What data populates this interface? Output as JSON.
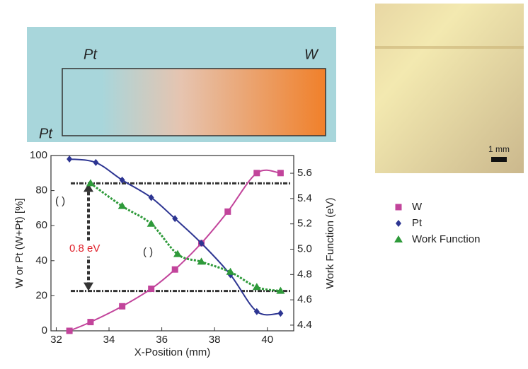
{
  "schematic": {
    "labels": [
      "Pt",
      "W",
      "Pt"
    ]
  },
  "photo": {
    "scale_label": "1 mm"
  },
  "chart_data": {
    "type": "scatter",
    "xlabel": "X-Position (mm)",
    "ylabel": "W or Pt (W+Pt) [%]",
    "y2label": "Work Function (eV)",
    "xlim": [
      31.8,
      41
    ],
    "ylim": [
      0,
      100
    ],
    "y2lim": [
      4.355,
      5.74
    ],
    "xticks": [
      32,
      34,
      36,
      38,
      40
    ],
    "yticks": [
      0,
      20,
      40,
      60,
      80,
      100
    ],
    "y2ticks": [
      4.4,
      4.6,
      4.8,
      {
        "value": 5.0,
        "label": "5.0"
      },
      5.2,
      5.4,
      5.6
    ],
    "series": [
      {
        "name": "W",
        "color": "#c2449b",
        "marker": "square",
        "x": [
          32.5,
          33.3,
          34.5,
          35.6,
          36.5,
          37.5,
          38.5,
          39.6,
          40.5
        ],
        "values": [
          0,
          5,
          14,
          24,
          35,
          50,
          68,
          90,
          90
        ]
      },
      {
        "name": "Pt",
        "color": "#2d3592",
        "marker": "diamond",
        "x": [
          32.5,
          33.5,
          34.5,
          35.6,
          36.5,
          37.5,
          38.6,
          39.6,
          40.5
        ],
        "values": [
          98,
          96,
          86,
          76,
          64,
          50,
          32,
          11,
          10
        ]
      },
      {
        "name": "Work Function",
        "color": "#2e9a3a",
        "marker": "triangle",
        "axis": "y2",
        "x": [
          33.3,
          34.5,
          35.6,
          36.6,
          37.5,
          38.6,
          39.6,
          40.5
        ],
        "values": [
          5.52,
          5.34,
          5.2,
          4.96,
          4.9,
          4.82,
          4.7,
          4.67
        ]
      }
    ],
    "reference_lines": [
      5.52,
      4.67
    ],
    "annotations": [
      "0.8 eV",
      "( )",
      "( )"
    ]
  }
}
